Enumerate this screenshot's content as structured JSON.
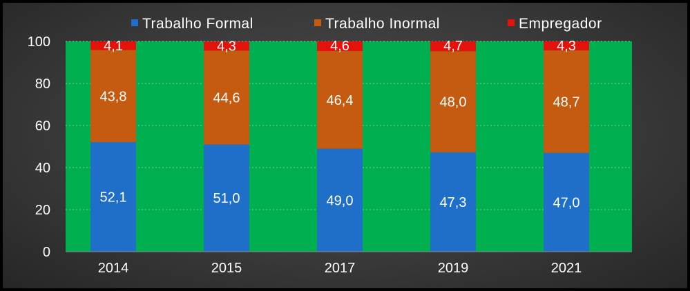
{
  "chart_data": {
    "type": "bar",
    "stacked": true,
    "title": "",
    "xlabel": "",
    "ylabel": "",
    "ylim": [
      0,
      100
    ],
    "yticks": [
      0,
      20,
      40,
      60,
      80,
      100
    ],
    "grid": true,
    "legend_position": "top",
    "categories": [
      "2014",
      "2015",
      "2017",
      "2019",
      "2021"
    ],
    "series": [
      {
        "name": "Trabalho Formal",
        "color": "#1f6fc8",
        "values": [
          52.1,
          51.0,
          49.0,
          47.3,
          47.0
        ],
        "labels": [
          "52,1",
          "51,0",
          "49,0",
          "47,3",
          "47,0"
        ]
      },
      {
        "name": "Trabalho Inormal",
        "color": "#c55a11",
        "values": [
          43.8,
          44.6,
          46.4,
          48.0,
          48.7
        ],
        "labels": [
          "43,8",
          "44,6",
          "46,4",
          "48,0",
          "48,7"
        ]
      },
      {
        "name": "Empregador",
        "color": "#e3120b",
        "values": [
          4.1,
          4.3,
          4.6,
          4.7,
          4.3
        ],
        "labels": [
          "4,1",
          "4,3",
          "4,6",
          "4,7",
          "4,3"
        ]
      }
    ],
    "plot_background": "#00b050"
  }
}
